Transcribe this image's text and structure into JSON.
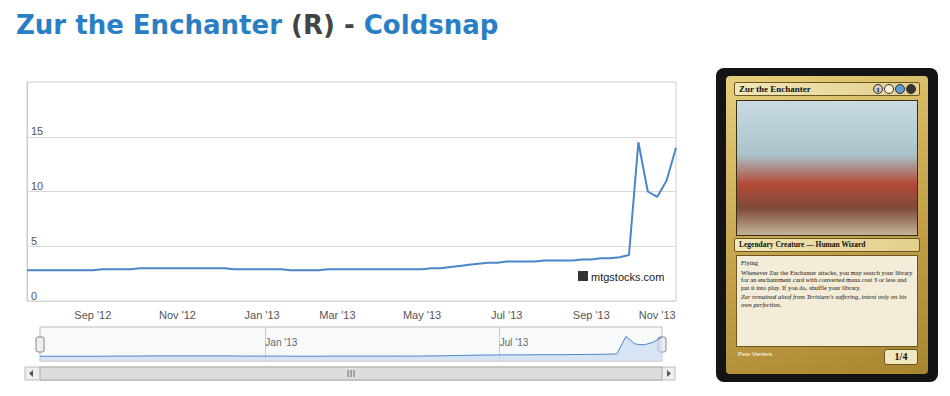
{
  "header": {
    "name": "Zur the Enchanter",
    "rarity": "(R)",
    "separator": "-",
    "set": "Coldsnap"
  },
  "chart_data": {
    "type": "line",
    "categories": [
      null,
      null,
      null,
      null,
      null,
      null,
      null,
      "Sep '12",
      null,
      null,
      null,
      null,
      null,
      null,
      null,
      null,
      "Nov '12",
      null,
      null,
      null,
      null,
      null,
      null,
      null,
      null,
      "Jan '13",
      null,
      null,
      null,
      null,
      null,
      null,
      null,
      "Mar '13",
      null,
      null,
      null,
      null,
      null,
      null,
      null,
      null,
      "May '13",
      null,
      null,
      null,
      null,
      null,
      null,
      null,
      null,
      "Jul '13",
      null,
      null,
      null,
      null,
      null,
      null,
      null,
      null,
      "Sep '13",
      null,
      null,
      null,
      null,
      null,
      null,
      "Nov '13",
      null,
      null
    ],
    "values": [
      2.8,
      2.8,
      2.8,
      2.8,
      2.8,
      2.8,
      2.8,
      2.8,
      2.9,
      2.9,
      2.9,
      2.9,
      3.0,
      3.0,
      3.0,
      3.0,
      3.0,
      3.0,
      3.0,
      3.0,
      3.0,
      3.0,
      2.9,
      2.9,
      2.9,
      2.9,
      2.9,
      2.9,
      2.8,
      2.8,
      2.8,
      2.8,
      2.9,
      2.9,
      2.9,
      2.9,
      2.9,
      2.9,
      2.9,
      2.9,
      2.9,
      2.9,
      2.9,
      3.0,
      3.0,
      3.1,
      3.2,
      3.3,
      3.4,
      3.5,
      3.5,
      3.6,
      3.6,
      3.6,
      3.6,
      3.7,
      3.7,
      3.7,
      3.7,
      3.8,
      3.8,
      3.9,
      3.9,
      4.0,
      4.2,
      14.5,
      10.0,
      9.5,
      11.0,
      14.0
    ],
    "color": "#4a86c8",
    "ylim": [
      0,
      20
    ],
    "yticks": [
      0,
      5,
      10,
      15
    ],
    "grid": true,
    "annotations": [
      "mtgstocks.com"
    ]
  },
  "navigator": {
    "labels": [
      "Jan '13",
      "Jul '13"
    ]
  },
  "card": {
    "name": "Zur the Enchanter",
    "mana_cost": "1",
    "type_line": "Legendary Creature — Human Wizard",
    "rules": [
      "Flying",
      "Whenever Zur the Enchanter attacks, you may search your library for an enchantment card with converted mana cost 3 or less and put it into play. If you do, shuffle your library."
    ],
    "flavor": "Zur remained aloof from Terisiare's suffering, intent only on his own perfection.",
    "artist": "Pete Venters",
    "power_toughness": "1/4"
  }
}
